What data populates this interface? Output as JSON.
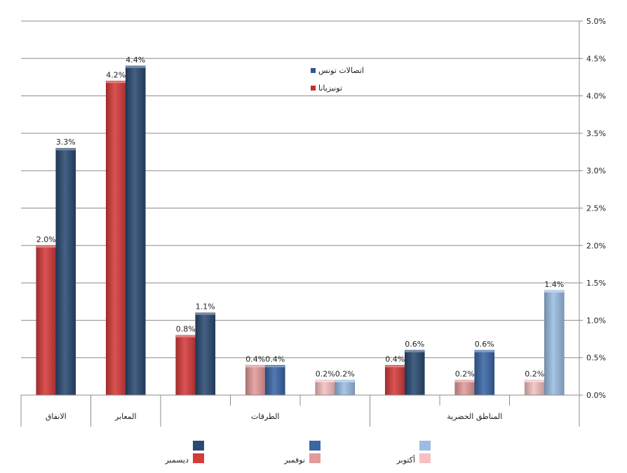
{
  "chart_data": {
    "type": "bar",
    "ylim": [
      0,
      5
    ],
    "yticks": [
      "0.0%",
      "0.5%",
      "1.0%",
      "1.5%",
      "2.0%",
      "2.5%",
      "3.0%",
      "3.5%",
      "4.0%",
      "4.5%",
      "5.0%"
    ],
    "grid": true,
    "bars": [
      {
        "slot": 0,
        "series": "dec_tunisiana",
        "value": 2.0,
        "label": "2.0%"
      },
      {
        "slot": 0,
        "series": "dec_tt",
        "value": 3.3,
        "label": "3.3%"
      },
      {
        "slot": 1,
        "series": "dec_tunisiana",
        "value": 4.2,
        "label": "4.2%"
      },
      {
        "slot": 1,
        "series": "dec_tt",
        "value": 4.4,
        "label": "4.4%"
      },
      {
        "slot": 2,
        "series": "dec_tunisiana",
        "value": 0.8,
        "label": "0.8%"
      },
      {
        "slot": 2,
        "series": "dec_tt",
        "value": 1.1,
        "label": "1.1%"
      },
      {
        "slot": 3,
        "series": "nov_tunisiana",
        "value": 0.4,
        "label": "0.4%"
      },
      {
        "slot": 3,
        "series": "nov_tt",
        "value": 0.4,
        "label": "0.4%"
      },
      {
        "slot": 4,
        "series": "oct_tunisiana",
        "value": 0.2,
        "label": "0.2%"
      },
      {
        "slot": 4,
        "series": "oct_tt",
        "value": 0.2,
        "label": "0.2%"
      },
      {
        "slot": 5,
        "series": "dec_tunisiana",
        "value": 0.4,
        "label": "0.4%"
      },
      {
        "slot": 5,
        "series": "dec_tt",
        "value": 0.6,
        "label": "0.6%"
      },
      {
        "slot": 6,
        "series": "nov_tunisiana",
        "value": 0.2,
        "label": "0.2%"
      },
      {
        "slot": 6,
        "series": "nov_tt",
        "value": 0.6,
        "label": "0.6%"
      },
      {
        "slot": 7,
        "series": "oct_tunisiana",
        "value": 0.2,
        "label": "0.2%"
      },
      {
        "slot": 7,
        "series": "oct_tt",
        "value": 1.4,
        "label": "1.4%"
      }
    ],
    "categories": [
      {
        "label": "الانفاق",
        "from": 0,
        "to": 1
      },
      {
        "label": "المعابر",
        "from": 1,
        "to": 2
      },
      {
        "label": "الطرقات",
        "from": 2,
        "to": 5
      },
      {
        "label": "المناطق الحضرية",
        "from": 5,
        "to": 8
      }
    ],
    "colors": {
      "dec_tunisiana": "#d63b3b",
      "dec_tt": "#2b4a72",
      "nov_tunisiana": "#e39a9a",
      "nov_tt": "#3a67a6",
      "oct_tunisiana": "#f5c1c1",
      "oct_tt": "#9bbde3"
    },
    "legend_operators": [
      {
        "label": "اتصالات تونس",
        "color": "#2f5797"
      },
      {
        "label": "تونيزيانا",
        "color": "#c0302e"
      }
    ],
    "legend_months": [
      {
        "label": "ديسمبر",
        "top_color": "#2b4a72",
        "bottom_color": "#d63b3b"
      },
      {
        "label": "نوفمبر",
        "top_color": "#3a67a6",
        "bottom_color": "#e39a9a"
      },
      {
        "label": "أكتوبر",
        "top_color": "#9bbde3",
        "bottom_color": "#f5c1c1"
      }
    ]
  }
}
